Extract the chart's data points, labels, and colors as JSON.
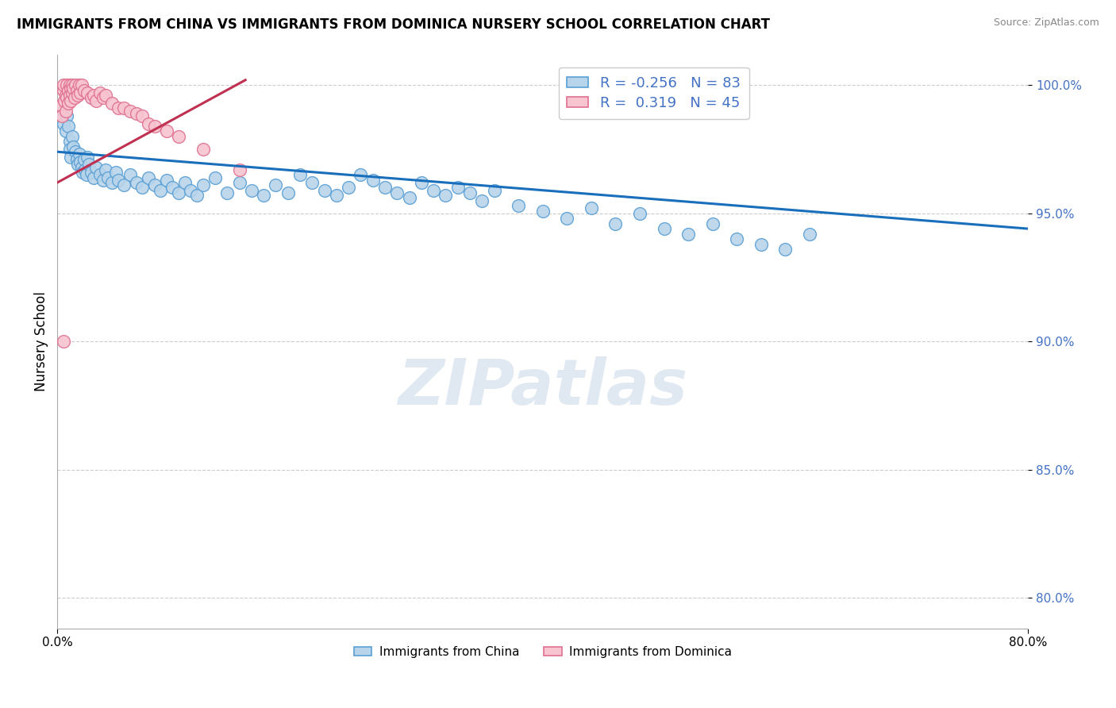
{
  "title": "IMMIGRANTS FROM CHINA VS IMMIGRANTS FROM DOMINICA NURSERY SCHOOL CORRELATION CHART",
  "source": "Source: ZipAtlas.com",
  "ylabel": "Nursery School",
  "ytick_values": [
    0.8,
    0.85,
    0.9,
    0.95,
    1.0
  ],
  "xlim": [
    0.0,
    0.8
  ],
  "ylim": [
    0.788,
    1.012
  ],
  "china_R": -0.256,
  "china_N": 83,
  "dominica_R": 0.319,
  "dominica_N": 45,
  "china_color": "#b8d4ea",
  "china_edge": "#5a9fd4",
  "dominica_color": "#f7c4d0",
  "dominica_edge": "#e07090",
  "trendline_china_color": "#1a6fbd",
  "trendline_dominica_color": "#c03050",
  "watermark": "ZIPatlas",
  "china_trend_x": [
    0.0,
    0.8
  ],
  "china_trend_y": [
    0.974,
    0.944
  ],
  "dominica_trend_x": [
    0.0,
    0.155
  ],
  "dominica_trend_y": [
    0.962,
    1.002
  ],
  "china_scatter_x": [
    0.005,
    0.005,
    0.007,
    0.008,
    0.009,
    0.01,
    0.01,
    0.011,
    0.012,
    0.013,
    0.015,
    0.016,
    0.017,
    0.018,
    0.019,
    0.02,
    0.021,
    0.022,
    0.023,
    0.024,
    0.025,
    0.026,
    0.028,
    0.03,
    0.032,
    0.035,
    0.038,
    0.04,
    0.042,
    0.045,
    0.048,
    0.05,
    0.055,
    0.06,
    0.065,
    0.07,
    0.075,
    0.08,
    0.085,
    0.09,
    0.095,
    0.1,
    0.105,
    0.11,
    0.115,
    0.12,
    0.13,
    0.14,
    0.15,
    0.16,
    0.17,
    0.18,
    0.19,
    0.2,
    0.21,
    0.22,
    0.23,
    0.24,
    0.25,
    0.26,
    0.27,
    0.28,
    0.29,
    0.3,
    0.31,
    0.32,
    0.33,
    0.34,
    0.35,
    0.36,
    0.38,
    0.4,
    0.42,
    0.44,
    0.46,
    0.48,
    0.5,
    0.52,
    0.54,
    0.56,
    0.58,
    0.6,
    0.62
  ],
  "china_scatter_y": [
    0.99,
    0.985,
    0.982,
    0.988,
    0.984,
    0.978,
    0.975,
    0.972,
    0.98,
    0.976,
    0.974,
    0.971,
    0.969,
    0.973,
    0.97,
    0.968,
    0.966,
    0.971,
    0.967,
    0.965,
    0.972,
    0.969,
    0.966,
    0.964,
    0.968,
    0.965,
    0.963,
    0.967,
    0.964,
    0.962,
    0.966,
    0.963,
    0.961,
    0.965,
    0.962,
    0.96,
    0.964,
    0.961,
    0.959,
    0.963,
    0.96,
    0.958,
    0.962,
    0.959,
    0.957,
    0.961,
    0.964,
    0.958,
    0.962,
    0.959,
    0.957,
    0.961,
    0.958,
    0.965,
    0.962,
    0.959,
    0.957,
    0.96,
    0.965,
    0.963,
    0.96,
    0.958,
    0.956,
    0.962,
    0.959,
    0.957,
    0.96,
    0.958,
    0.955,
    0.959,
    0.953,
    0.951,
    0.948,
    0.952,
    0.946,
    0.95,
    0.944,
    0.942,
    0.946,
    0.94,
    0.938,
    0.936,
    0.942
  ],
  "dominica_scatter_x": [
    0.003,
    0.004,
    0.005,
    0.005,
    0.006,
    0.007,
    0.007,
    0.008,
    0.008,
    0.009,
    0.009,
    0.01,
    0.01,
    0.011,
    0.011,
    0.012,
    0.012,
    0.013,
    0.014,
    0.015,
    0.016,
    0.017,
    0.018,
    0.019,
    0.02,
    0.022,
    0.025,
    0.028,
    0.03,
    0.032,
    0.035,
    0.038,
    0.04,
    0.045,
    0.05,
    0.055,
    0.06,
    0.065,
    0.07,
    0.075,
    0.08,
    0.09,
    0.1,
    0.12,
    0.15
  ],
  "dominica_scatter_y": [
    0.992,
    0.988,
    0.998,
    1.0,
    0.994,
    0.996,
    0.99,
    1.0,
    0.995,
    0.998,
    0.993,
    1.0,
    0.996,
    0.999,
    0.994,
    1.0,
    0.997,
    0.999,
    0.995,
    1.0,
    0.998,
    0.996,
    1.0,
    0.997,
    1.0,
    0.998,
    0.997,
    0.995,
    0.996,
    0.994,
    0.997,
    0.995,
    0.996,
    0.993,
    0.991,
    0.991,
    0.99,
    0.989,
    0.988,
    0.985,
    0.984,
    0.982,
    0.98,
    0.975,
    0.967
  ],
  "dominica_outlier_x": [
    0.005
  ],
  "dominica_outlier_y": [
    0.9
  ]
}
